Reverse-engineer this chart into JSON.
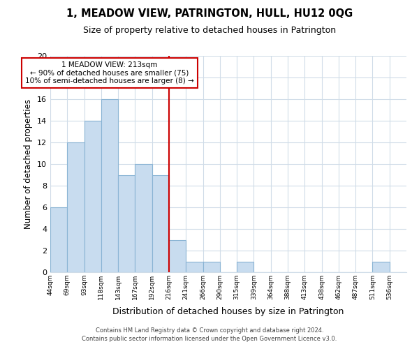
{
  "title": "1, MEADOW VIEW, PATRINGTON, HULL, HU12 0QG",
  "subtitle": "Size of property relative to detached houses in Patrington",
  "xlabel": "Distribution of detached houses by size in Patrington",
  "ylabel": "Number of detached properties",
  "bar_color": "#c8dcef",
  "bar_edge_color": "#8ab4d4",
  "bin_labels": [
    "44sqm",
    "69sqm",
    "93sqm",
    "118sqm",
    "143sqm",
    "167sqm",
    "192sqm",
    "216sqm",
    "241sqm",
    "266sqm",
    "290sqm",
    "315sqm",
    "339sqm",
    "364sqm",
    "388sqm",
    "413sqm",
    "438sqm",
    "462sqm",
    "487sqm",
    "511sqm",
    "536sqm"
  ],
  "counts": [
    6,
    12,
    14,
    16,
    9,
    10,
    9,
    3,
    1,
    1,
    0,
    1,
    0,
    0,
    0,
    0,
    0,
    0,
    0,
    1,
    0
  ],
  "n_bins": 21,
  "vline_bin": 7,
  "vline_color": "#cc0000",
  "ylim": [
    0,
    20
  ],
  "yticks": [
    0,
    2,
    4,
    6,
    8,
    10,
    12,
    14,
    16,
    18,
    20
  ],
  "annotation_title": "1 MEADOW VIEW: 213sqm",
  "annotation_line1": "← 90% of detached houses are smaller (75)",
  "annotation_line2": "10% of semi-detached houses are larger (8) →",
  "annotation_box_color": "#ffffff",
  "annotation_box_edge": "#cc0000",
  "footer_line1": "Contains HM Land Registry data © Crown copyright and database right 2024.",
  "footer_line2": "Contains public sector information licensed under the Open Government Licence v3.0.",
  "background_color": "#ffffff",
  "grid_color": "#d0dce8"
}
